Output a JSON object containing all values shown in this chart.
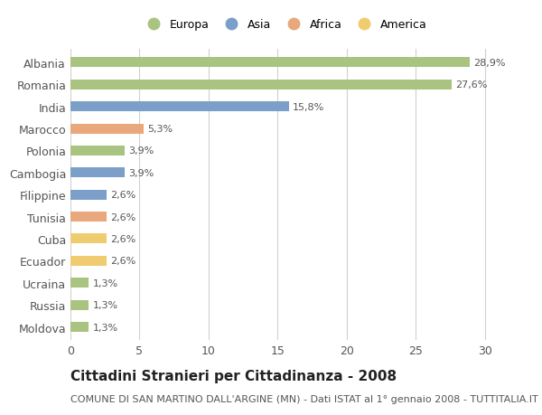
{
  "categories": [
    "Albania",
    "Romania",
    "India",
    "Marocco",
    "Polonia",
    "Cambogia",
    "Filippine",
    "Tunisia",
    "Cuba",
    "Ecuador",
    "Ucraina",
    "Russia",
    "Moldova"
  ],
  "values": [
    28.9,
    27.6,
    15.8,
    5.3,
    3.9,
    3.9,
    2.6,
    2.6,
    2.6,
    2.6,
    1.3,
    1.3,
    1.3
  ],
  "labels": [
    "28,9%",
    "27,6%",
    "15,8%",
    "5,3%",
    "3,9%",
    "3,9%",
    "2,6%",
    "2,6%",
    "2,6%",
    "2,6%",
    "1,3%",
    "1,3%",
    "1,3%"
  ],
  "bar_colors": [
    "#a8c480",
    "#a8c480",
    "#7b9fc8",
    "#e8a87c",
    "#a8c480",
    "#7b9fc8",
    "#7b9fc8",
    "#e8a87c",
    "#f0cc70",
    "#f0cc70",
    "#a8c480",
    "#a8c480",
    "#a8c480"
  ],
  "legend_labels": [
    "Europa",
    "Asia",
    "Africa",
    "America"
  ],
  "legend_colors": [
    "#a8c480",
    "#7b9fc8",
    "#e8a87c",
    "#f0cc70"
  ],
  "title": "Cittadini Stranieri per Cittadinanza - 2008",
  "subtitle": "COMUNE DI SAN MARTINO DALL'ARGINE (MN) - Dati ISTAT al 1° gennaio 2008 - TUTTITALIA.IT",
  "xlim": [
    0,
    31
  ],
  "xticks": [
    0,
    5,
    10,
    15,
    20,
    25,
    30
  ],
  "background_color": "#ffffff",
  "grid_color": "#d0d0d0",
  "bar_height": 0.45,
  "title_fontsize": 11,
  "subtitle_fontsize": 8,
  "label_fontsize": 8,
  "tick_fontsize": 9,
  "legend_fontsize": 9
}
